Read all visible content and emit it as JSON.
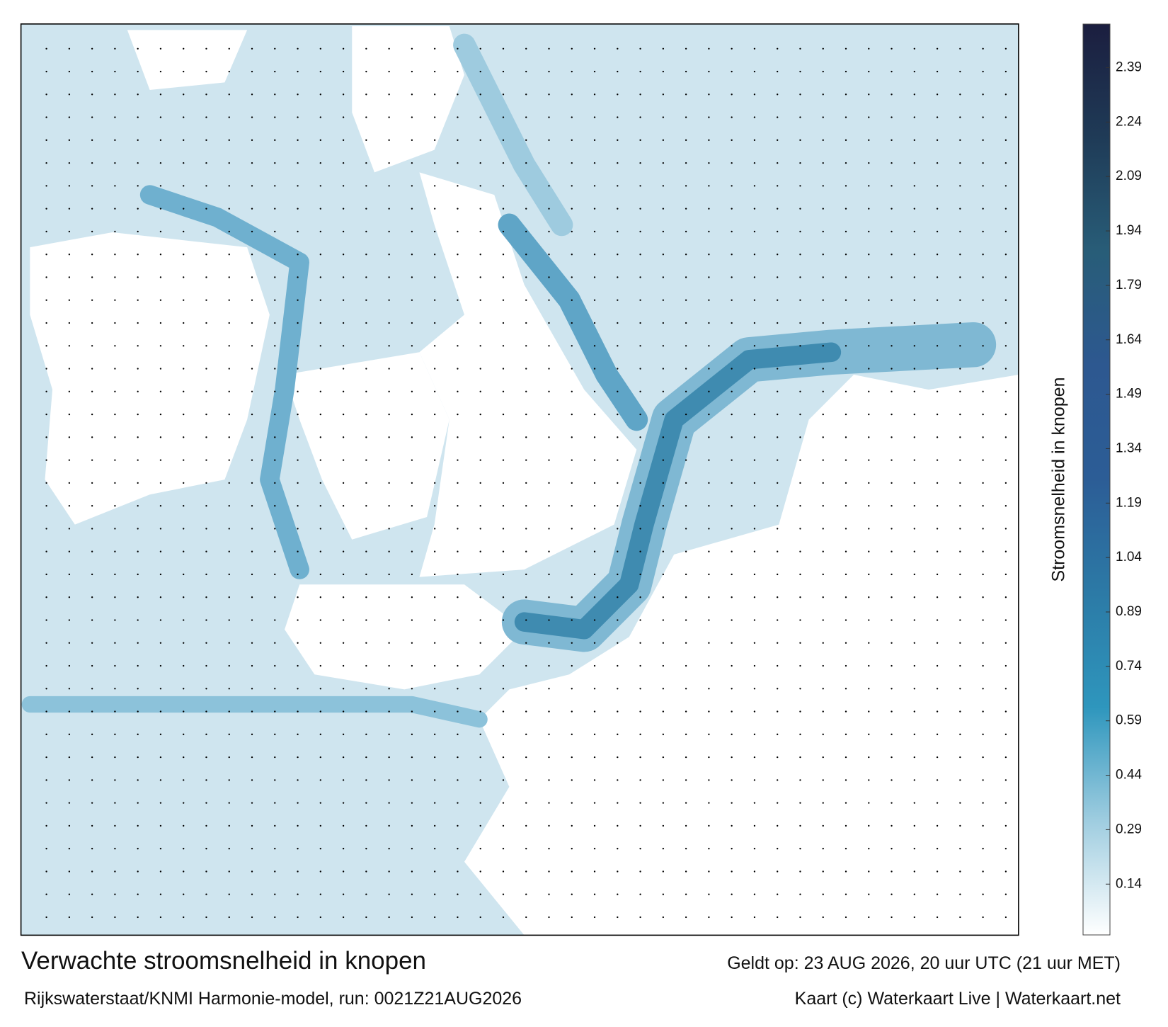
{
  "title": "Verwachte stroomsnelheid in knopen",
  "subtitle": "Rijkswaterstaat/KNMI Harmonie-model, run: 0021Z21AUG2026",
  "valid_time": "Geldt op: 23 AUG 2026, 20 uur UTC (21 uur MET)",
  "credit": "Kaart (c) Waterkaart Live | Waterkaart.net",
  "colorbar": {
    "label": "Stroomsnelheid in knopen",
    "lim": [
      0,
      2.51
    ],
    "ticks": [
      0.14,
      0.29,
      0.44,
      0.59,
      0.74,
      0.89,
      1.04,
      1.19,
      1.34,
      1.49,
      1.64,
      1.79,
      1.94,
      2.09,
      2.24,
      2.39
    ],
    "colors": [
      "#ffffff",
      "#9fcde0",
      "#2e96bd",
      "#2c7aa6",
      "#2c5d96",
      "#2d5890",
      "#285d78",
      "#1f3b57",
      "#1b1e3f"
    ]
  }
}
